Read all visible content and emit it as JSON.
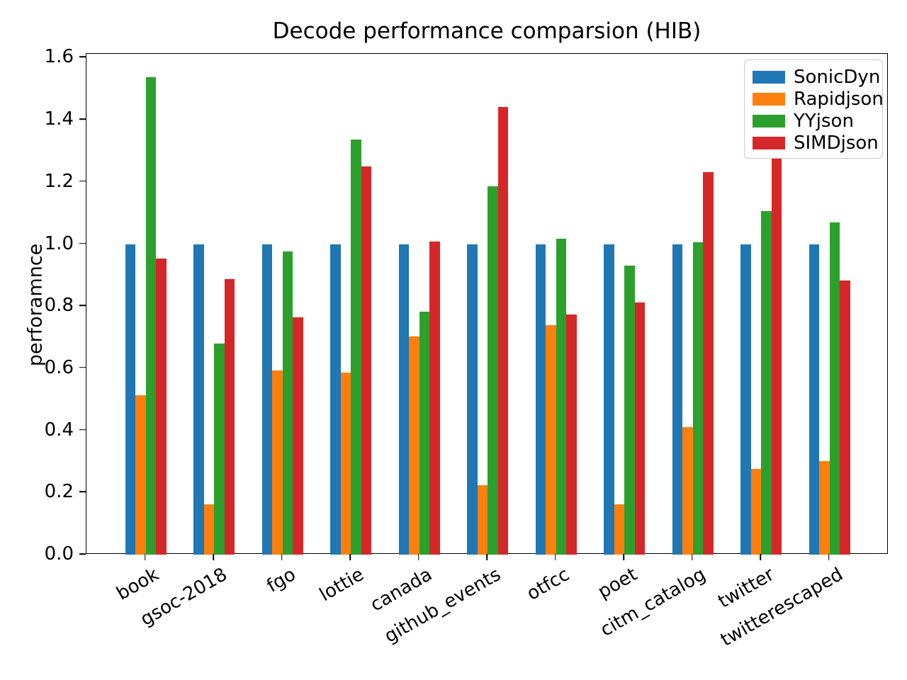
{
  "title": "Decode performance comparsion (HIB)",
  "ylabel": "perforamnce",
  "chart_data": {
    "type": "bar",
    "title": "Decode performance comparsion (HIB)",
    "xlabel": "",
    "ylabel": "perforamnce",
    "categories": [
      "book",
      "gsoc-2018",
      "fgo",
      "lottie",
      "canada",
      "github_events",
      "otfcc",
      "poet",
      "citm_catalog",
      "twitter",
      "twitterescaped"
    ],
    "series": [
      {
        "name": "SonicDyn",
        "color": "#1f77b4",
        "values": [
          1.0,
          1.0,
          1.0,
          1.0,
          1.0,
          1.0,
          1.0,
          1.0,
          1.0,
          1.0,
          1.0
        ]
      },
      {
        "name": "Rapidjson",
        "color": "#ff7f0e",
        "values": [
          0.512,
          0.163,
          0.594,
          0.586,
          0.702,
          0.224,
          0.74,
          0.161,
          0.411,
          0.275,
          0.301
        ]
      },
      {
        "name": "YYjson",
        "color": "#2ca02c",
        "values": [
          1.537,
          0.679,
          0.977,
          1.337,
          0.783,
          1.187,
          1.018,
          0.93,
          1.005,
          1.107,
          1.07
        ]
      },
      {
        "name": "SIMDjson",
        "color": "#d62728",
        "values": [
          0.953,
          0.886,
          0.763,
          1.25,
          1.009,
          1.442,
          0.773,
          0.812,
          1.232,
          1.287,
          0.882
        ]
      }
    ],
    "ylim": [
      0.0,
      1.6
    ],
    "yticks": [
      "0.0",
      "0.2",
      "0.4",
      "0.6",
      "0.8",
      "1.0",
      "1.2",
      "1.4",
      "1.6"
    ],
    "x_tick_rotation_deg": 30,
    "legend_position": "upper right",
    "grid": false,
    "axes_facecolor": "#ffffff",
    "spine_color": "#000000"
  }
}
